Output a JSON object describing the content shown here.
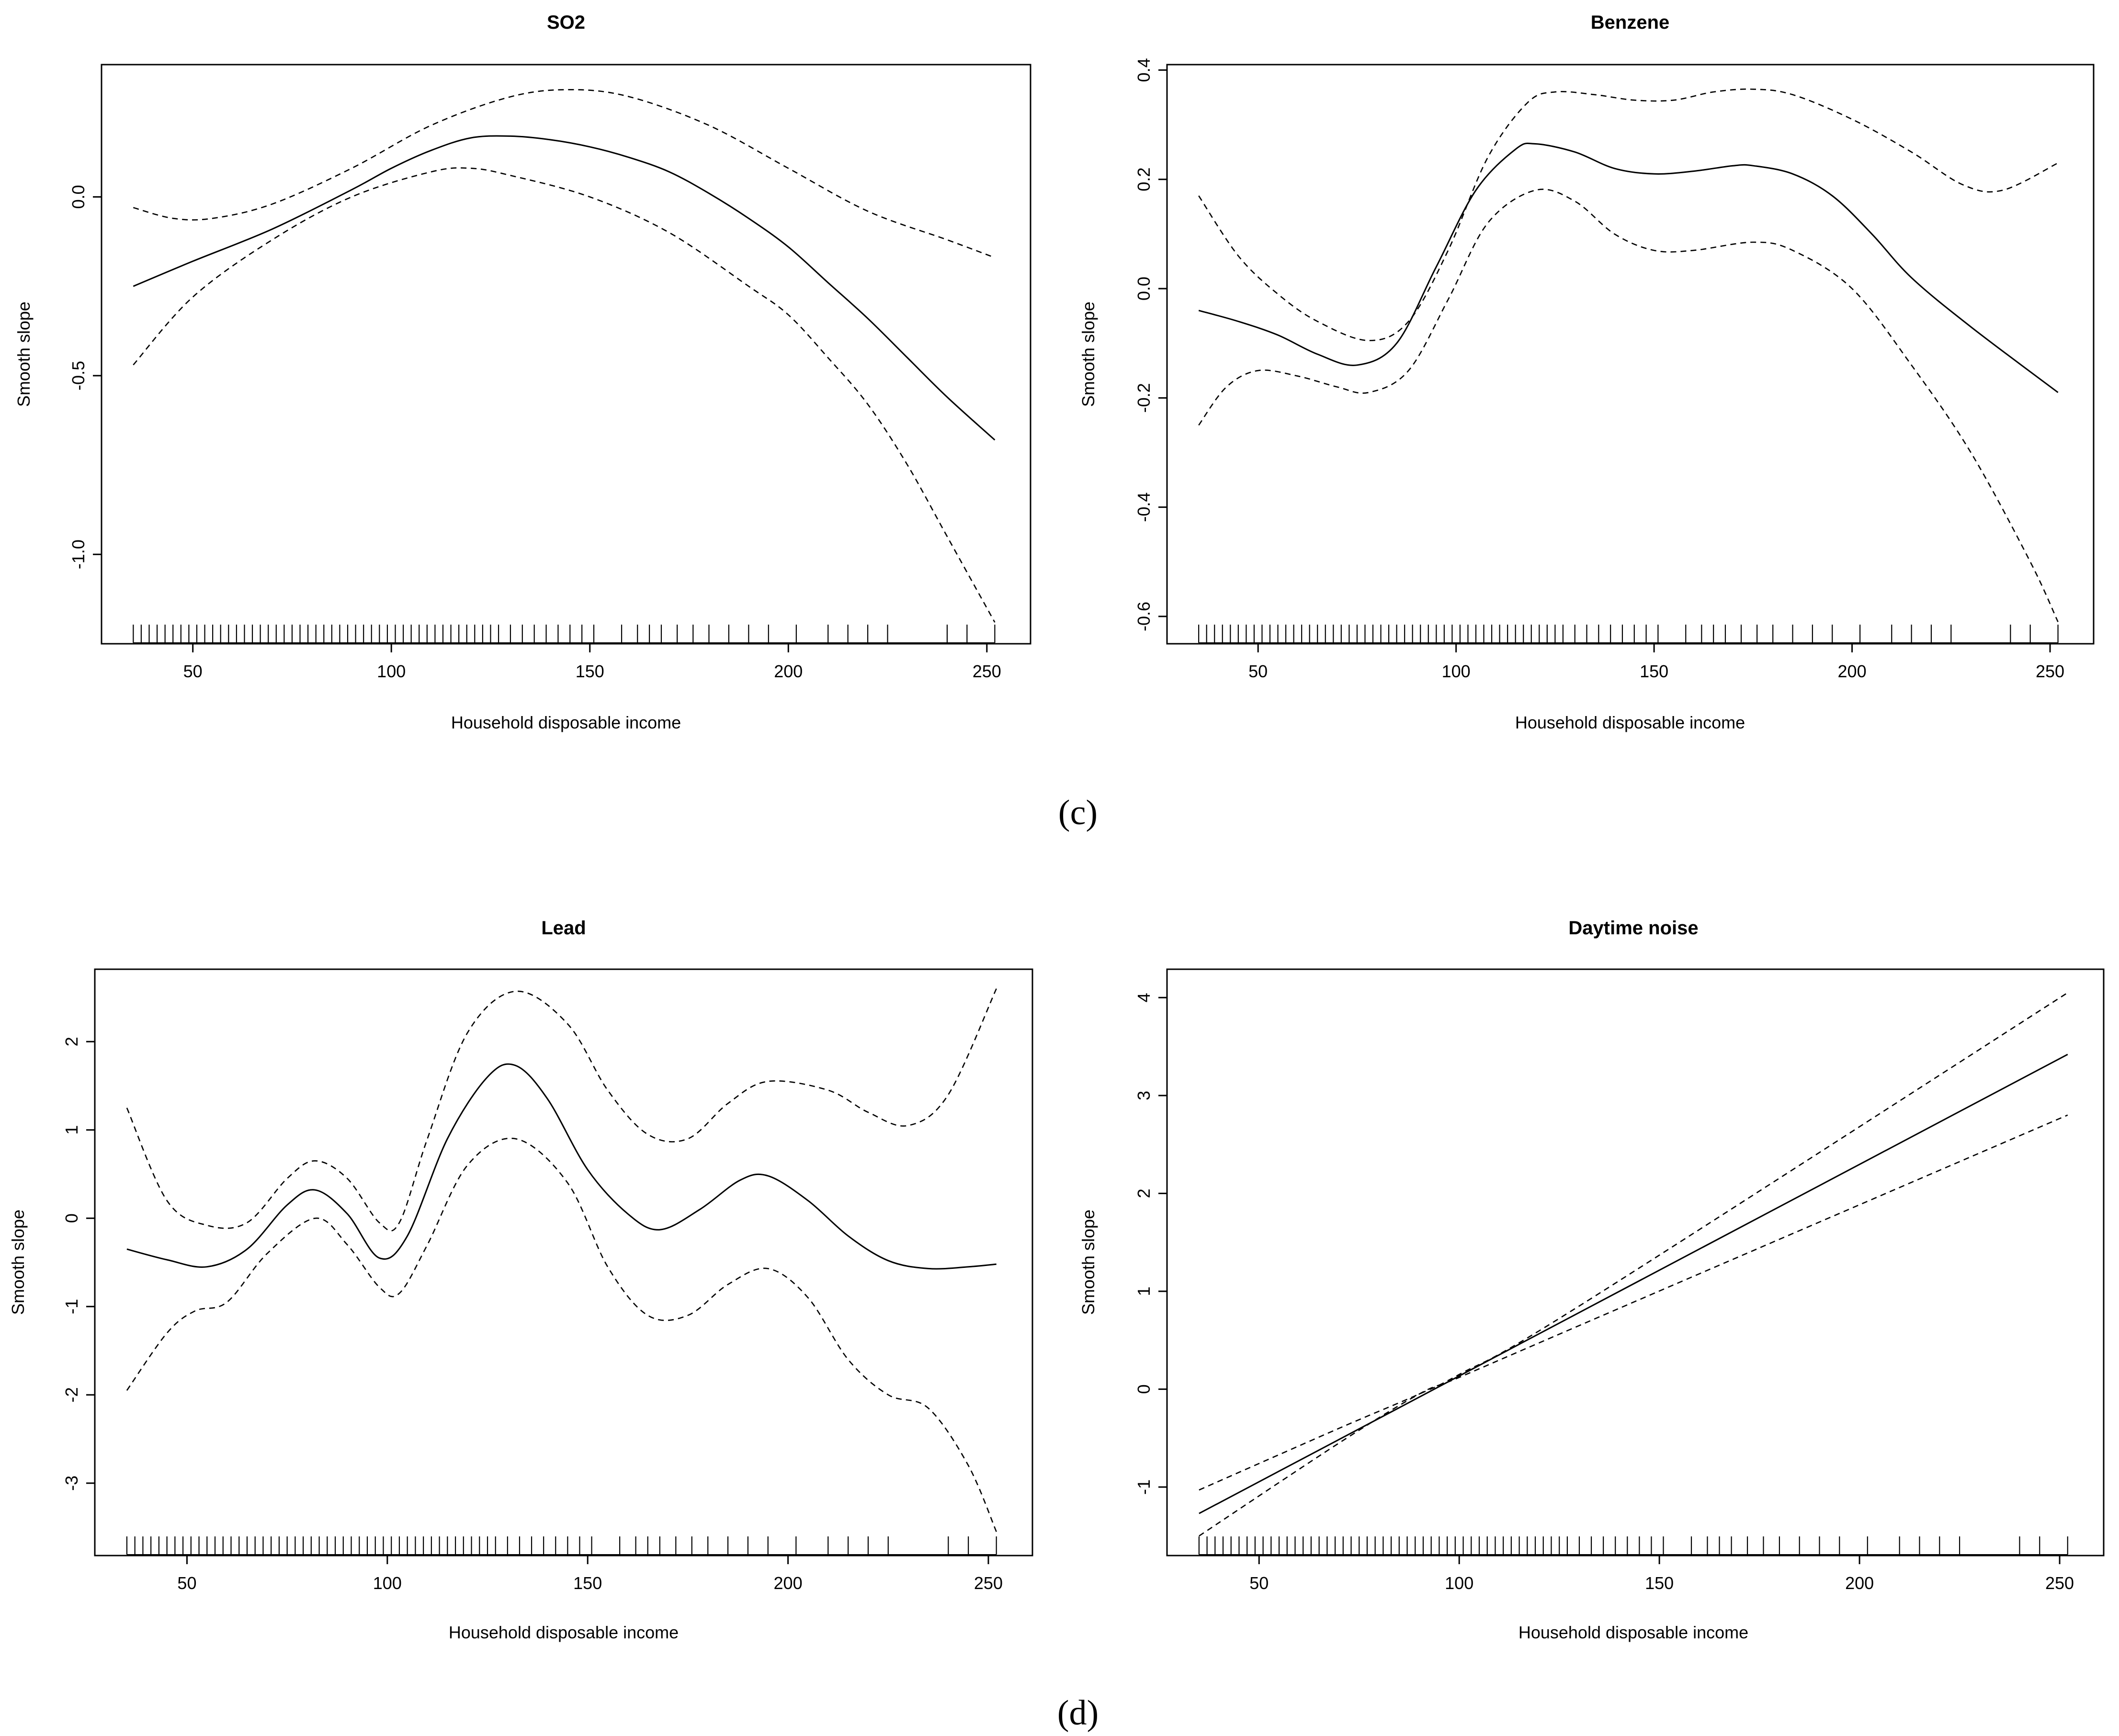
{
  "figure": {
    "captions": [
      "(c)",
      "(d)"
    ]
  },
  "chart_data": [
    {
      "type": "line",
      "title": "SO2",
      "xlabel": "Household disposable income",
      "ylabel": "Smooth slope",
      "xlim": [
        27,
        261
      ],
      "ylim": [
        -1.25,
        0.37
      ],
      "xticks": [
        50,
        100,
        150,
        200,
        250
      ],
      "yticks": [
        0.0,
        -0.5,
        -1.0
      ],
      "ytick_labels": [
        "0.0",
        "-0.5",
        "-1.0"
      ],
      "series": [
        {
          "name": "estimate",
          "style": "solid",
          "x": [
            35,
            50,
            70,
            90,
            100,
            110,
            120,
            130,
            140,
            150,
            160,
            170,
            180,
            190,
            200,
            210,
            220,
            230,
            240,
            252
          ],
          "y": [
            -0.25,
            -0.18,
            -0.09,
            0.02,
            0.08,
            0.13,
            0.165,
            0.17,
            0.16,
            0.14,
            0.11,
            0.07,
            0.01,
            -0.06,
            -0.14,
            -0.24,
            -0.34,
            -0.45,
            -0.56,
            -0.68
          ]
        },
        {
          "name": "upper",
          "style": "dashed",
          "x": [
            35,
            45,
            55,
            70,
            90,
            110,
            130,
            145,
            160,
            180,
            200,
            220,
            240,
            252
          ],
          "y": [
            -0.03,
            -0.06,
            -0.06,
            -0.02,
            0.08,
            0.2,
            0.28,
            0.3,
            0.28,
            0.2,
            0.08,
            -0.04,
            -0.12,
            -0.17
          ]
        },
        {
          "name": "lower",
          "style": "dashed",
          "x": [
            35,
            50,
            70,
            90,
            110,
            120,
            130,
            150,
            170,
            190,
            200,
            210,
            220,
            230,
            240,
            252
          ],
          "y": [
            -0.47,
            -0.28,
            -0.12,
            0.0,
            0.07,
            0.08,
            0.06,
            0.0,
            -0.1,
            -0.25,
            -0.33,
            -0.45,
            -0.58,
            -0.75,
            -0.95,
            -1.19
          ]
        }
      ],
      "rug": [
        35,
        37,
        39,
        41,
        43,
        45,
        47,
        49,
        51,
        53,
        55,
        57,
        59,
        61,
        63,
        65,
        67,
        69,
        71,
        73,
        75,
        77,
        79,
        81,
        83,
        85,
        87,
        89,
        91,
        93,
        95,
        97,
        99,
        101,
        103,
        105,
        107,
        109,
        111,
        113,
        115,
        117,
        119,
        121,
        123,
        125,
        127,
        130,
        133,
        136,
        139,
        142,
        145,
        148,
        151,
        158,
        162,
        165,
        168,
        172,
        176,
        180,
        185,
        190,
        195,
        202,
        210,
        215,
        220,
        225,
        240,
        245,
        252
      ]
    },
    {
      "type": "line",
      "title": "Benzene",
      "xlabel": "Household disposable income",
      "ylabel": "Smooth slope",
      "xlim": [
        27,
        261
      ],
      "ylim": [
        -0.65,
        0.41
      ],
      "xticks": [
        50,
        100,
        150,
        200,
        250
      ],
      "yticks": [
        0.4,
        0.2,
        0.0,
        -0.2,
        -0.4,
        -0.6
      ],
      "ytick_labels": [
        "0.4",
        "0.2",
        "0.0",
        "-0.2",
        "-0.4",
        "-0.6"
      ],
      "series": [
        {
          "name": "estimate",
          "style": "solid",
          "x": [
            35,
            45,
            55,
            65,
            75,
            85,
            95,
            105,
            115,
            120,
            130,
            140,
            150,
            160,
            170,
            175,
            185,
            195,
            205,
            215,
            230,
            252
          ],
          "y": [
            -0.04,
            -0.06,
            -0.085,
            -0.12,
            -0.14,
            -0.1,
            0.04,
            0.18,
            0.255,
            0.265,
            0.25,
            0.22,
            0.21,
            0.215,
            0.225,
            0.225,
            0.21,
            0.17,
            0.1,
            0.02,
            -0.07,
            -0.19
          ]
        },
        {
          "name": "upper",
          "style": "dashed",
          "x": [
            35,
            45,
            55,
            65,
            78,
            88,
            98,
            108,
            118,
            125,
            135,
            145,
            155,
            165,
            175,
            185,
            200,
            215,
            228,
            238,
            252
          ],
          "y": [
            0.17,
            0.06,
            -0.01,
            -0.06,
            -0.095,
            -0.06,
            0.07,
            0.24,
            0.34,
            0.36,
            0.355,
            0.345,
            0.345,
            0.36,
            0.365,
            0.355,
            0.31,
            0.25,
            0.19,
            0.18,
            0.23
          ]
        },
        {
          "name": "lower",
          "style": "dashed",
          "x": [
            35,
            42,
            50,
            60,
            70,
            78,
            88,
            98,
            108,
            120,
            130,
            140,
            150,
            160,
            175,
            185,
            200,
            215,
            230,
            245,
            252
          ],
          "y": [
            -0.25,
            -0.18,
            -0.15,
            -0.16,
            -0.18,
            -0.19,
            -0.15,
            -0.02,
            0.12,
            0.18,
            0.16,
            0.1,
            0.07,
            0.07,
            0.085,
            0.07,
            0.0,
            -0.14,
            -0.3,
            -0.5,
            -0.61
          ]
        }
      ],
      "rug": [
        35,
        37,
        39,
        41,
        43,
        45,
        47,
        49,
        51,
        53,
        55,
        57,
        59,
        61,
        63,
        65,
        67,
        69,
        71,
        73,
        75,
        77,
        79,
        81,
        83,
        85,
        87,
        89,
        91,
        93,
        95,
        97,
        99,
        101,
        103,
        105,
        107,
        109,
        111,
        113,
        115,
        117,
        119,
        121,
        123,
        125,
        127,
        130,
        133,
        136,
        139,
        142,
        145,
        148,
        151,
        158,
        162,
        165,
        168,
        172,
        176,
        180,
        185,
        190,
        195,
        202,
        210,
        215,
        220,
        225,
        240,
        245,
        252
      ]
    },
    {
      "type": "line",
      "title": "Lead",
      "xlabel": "Household disposable income",
      "ylabel": "Smooth slope",
      "xlim": [
        27,
        261
      ],
      "ylim": [
        -3.82,
        2.82
      ],
      "xticks": [
        50,
        100,
        150,
        200,
        250
      ],
      "yticks": [
        2,
        1,
        0,
        -1,
        -2,
        -3
      ],
      "ytick_labels": [
        "2",
        "1",
        "0",
        "-1",
        "-2",
        "-3"
      ],
      "series": [
        {
          "name": "estimate",
          "style": "solid",
          "x": [
            35,
            45,
            55,
            65,
            75,
            82,
            90,
            98,
            105,
            115,
            125,
            132,
            140,
            150,
            160,
            168,
            178,
            188,
            195,
            205,
            215,
            225,
            235,
            245,
            252
          ],
          "y": [
            -0.35,
            -0.47,
            -0.55,
            -0.35,
            0.15,
            0.32,
            0.05,
            -0.45,
            -0.2,
            0.9,
            1.6,
            1.73,
            1.35,
            0.55,
            0.05,
            -0.13,
            0.1,
            0.43,
            0.48,
            0.2,
            -0.2,
            -0.48,
            -0.57,
            -0.55,
            -0.52
          ]
        },
        {
          "name": "upper",
          "style": "dashed",
          "x": [
            35,
            45,
            55,
            65,
            75,
            82,
            90,
            98,
            103,
            110,
            120,
            132,
            145,
            155,
            165,
            175,
            185,
            195,
            210,
            220,
            230,
            240,
            252
          ],
          "y": [
            1.25,
            0.2,
            -0.08,
            -0.05,
            0.45,
            0.65,
            0.45,
            -0.05,
            -0.05,
            0.9,
            2.1,
            2.57,
            2.2,
            1.45,
            0.95,
            0.9,
            1.3,
            1.55,
            1.45,
            1.2,
            1.05,
            1.4,
            2.6
          ]
        },
        {
          "name": "lower",
          "style": "dashed",
          "x": [
            35,
            45,
            52,
            60,
            70,
            82,
            90,
            98,
            103,
            110,
            120,
            132,
            145,
            155,
            165,
            175,
            185,
            195,
            205,
            215,
            225,
            235,
            245,
            252
          ],
          "y": [
            -1.95,
            -1.3,
            -1.05,
            -0.95,
            -0.4,
            0.0,
            -0.3,
            -0.78,
            -0.85,
            -0.3,
            0.6,
            0.9,
            0.4,
            -0.55,
            -1.1,
            -1.1,
            -0.75,
            -0.57,
            -0.9,
            -1.6,
            -2.0,
            -2.15,
            -2.8,
            -3.55
          ]
        }
      ],
      "rug": [
        35,
        37,
        39,
        41,
        43,
        45,
        47,
        49,
        51,
        53,
        55,
        57,
        59,
        61,
        63,
        65,
        67,
        69,
        71,
        73,
        75,
        77,
        79,
        81,
        83,
        85,
        87,
        89,
        91,
        93,
        95,
        97,
        99,
        101,
        103,
        105,
        107,
        109,
        111,
        113,
        115,
        117,
        119,
        121,
        123,
        125,
        127,
        130,
        133,
        136,
        139,
        142,
        145,
        148,
        151,
        158,
        162,
        165,
        168,
        172,
        176,
        180,
        185,
        190,
        195,
        202,
        210,
        215,
        220,
        225,
        240,
        245,
        252
      ]
    },
    {
      "type": "line",
      "title": "Daytime noise",
      "xlabel": "Household disposable income",
      "ylabel": "Smooth slope",
      "xlim": [
        27,
        261
      ],
      "ylim": [
        -1.7,
        4.29
      ],
      "xticks": [
        50,
        100,
        150,
        200,
        250
      ],
      "yticks": [
        4,
        3,
        2,
        1,
        0,
        -1
      ],
      "ytick_labels": [
        "4",
        "3",
        "2",
        "1",
        "0",
        "-1"
      ],
      "series": [
        {
          "name": "estimate",
          "style": "solid",
          "x": [
            35,
            252
          ],
          "y": [
            -1.27,
            3.42
          ]
        },
        {
          "name": "upper",
          "style": "dashed",
          "x": [
            35,
            70,
            90,
            100,
            130,
            252
          ],
          "y": [
            -1.03,
            -0.4,
            -0.05,
            0.15,
            0.85,
            4.05
          ]
        },
        {
          "name": "lower",
          "style": "dashed",
          "x": [
            35,
            70,
            90,
            100,
            130,
            252
          ],
          "y": [
            -1.5,
            -0.55,
            -0.05,
            0.12,
            0.65,
            2.8
          ]
        }
      ],
      "rug": [
        35,
        37,
        39,
        41,
        43,
        45,
        47,
        49,
        51,
        53,
        55,
        57,
        59,
        61,
        63,
        65,
        67,
        69,
        71,
        73,
        75,
        77,
        79,
        81,
        83,
        85,
        87,
        89,
        91,
        93,
        95,
        97,
        99,
        101,
        103,
        105,
        107,
        109,
        111,
        113,
        115,
        117,
        119,
        121,
        123,
        125,
        127,
        130,
        133,
        136,
        139,
        142,
        145,
        148,
        151,
        158,
        162,
        165,
        168,
        172,
        176,
        180,
        185,
        190,
        195,
        202,
        210,
        215,
        220,
        225,
        240,
        245,
        252
      ]
    }
  ]
}
